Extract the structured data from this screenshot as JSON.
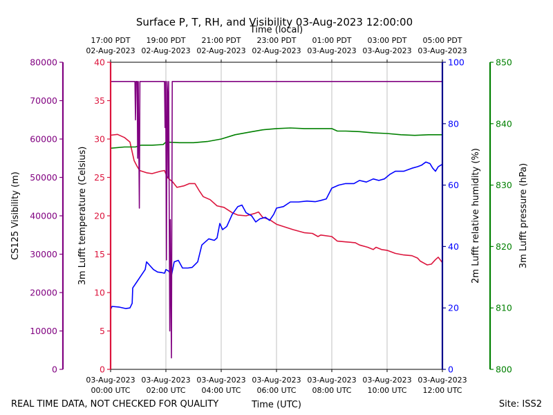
{
  "chart_data": {
    "type": "line",
    "title": "Surface P, T, RH, and Visibility 03-Aug-2023 12:00:00",
    "top_axis_title": "Time (local)",
    "xlabel": "Time (UTC)",
    "footer_left": "REAL TIME DATA, NOT CHECKED FOR QUALITY",
    "footer_right": "Site: ISS2",
    "x_range_hours": [
      0,
      12
    ],
    "x_ticks": [
      {
        "h": 0,
        "utc": [
          "03-Aug-2023",
          "00:00 UTC"
        ],
        "local": [
          "17:00 PDT",
          "02-Aug-2023"
        ]
      },
      {
        "h": 2,
        "utc": [
          "03-Aug-2023",
          "02:00 UTC"
        ],
        "local": [
          "19:00 PDT",
          "02-Aug-2023"
        ]
      },
      {
        "h": 4,
        "utc": [
          "03-Aug-2023",
          "04:00 UTC"
        ],
        "local": [
          "21:00 PDT",
          "02-Aug-2023"
        ]
      },
      {
        "h": 6,
        "utc": [
          "03-Aug-2023",
          "06:00 UTC"
        ],
        "local": [
          "23:00 PDT",
          "02-Aug-2023"
        ]
      },
      {
        "h": 8,
        "utc": [
          "03-Aug-2023",
          "08:00 UTC"
        ],
        "local": [
          "01:00 PDT",
          "03-Aug-2023"
        ]
      },
      {
        "h": 10,
        "utc": [
          "03-Aug-2023",
          "10:00 UTC"
        ],
        "local": [
          "03:00 PDT",
          "03-Aug-2023"
        ]
      },
      {
        "h": 12,
        "utc": [
          "03-Aug-2023",
          "12:00 UTC"
        ],
        "local": [
          "05:00 PDT",
          "03-Aug-2023"
        ]
      }
    ],
    "axes": {
      "visibility": {
        "label": "CS125 Visibility (m)",
        "color": "#800080",
        "range": [
          0,
          80000
        ],
        "ticks": [
          "0",
          "10000",
          "20000",
          "30000",
          "40000",
          "50000",
          "60000",
          "70000",
          "80000"
        ]
      },
      "temperature": {
        "label": "3m Lufft temperature (Celsius)",
        "color": "#dc143c",
        "range": [
          0,
          40
        ],
        "ticks": [
          "0",
          "5",
          "10",
          "15",
          "20",
          "25",
          "30",
          "35",
          "40"
        ]
      },
      "humidity": {
        "label": "2m Lufft relative humidity (%)",
        "color": "#0000ff",
        "axis_color": "#00008b",
        "range": [
          0,
          100
        ],
        "ticks": [
          "0",
          "20",
          "40",
          "60",
          "80",
          "100"
        ]
      },
      "pressure": {
        "label": "3m Lufft pressure (hPa)",
        "color": "#008000",
        "range": [
          800,
          850
        ],
        "ticks": [
          "800",
          "810",
          "820",
          "830",
          "840",
          "850"
        ]
      }
    },
    "series": [
      {
        "name": "3m Lufft temperature",
        "axis": "temperature",
        "color": "#dc143c",
        "points": [
          [
            0,
            30.5
          ],
          [
            0.25,
            30.6
          ],
          [
            0.5,
            30.2
          ],
          [
            0.7,
            29.6
          ],
          [
            0.8,
            28.0
          ],
          [
            0.85,
            27.2
          ],
          [
            0.95,
            26.5
          ],
          [
            1.05,
            25.9
          ],
          [
            1.3,
            25.6
          ],
          [
            1.5,
            25.5
          ],
          [
            1.8,
            25.8
          ],
          [
            1.95,
            25.9
          ],
          [
            2.05,
            25.0
          ],
          [
            2.25,
            24.4
          ],
          [
            2.4,
            23.7
          ],
          [
            2.65,
            23.9
          ],
          [
            2.85,
            24.2
          ],
          [
            3.05,
            24.2
          ],
          [
            3.2,
            23.3
          ],
          [
            3.35,
            22.5
          ],
          [
            3.6,
            22.1
          ],
          [
            3.85,
            21.3
          ],
          [
            4.1,
            21.1
          ],
          [
            4.4,
            20.4
          ],
          [
            4.6,
            20.1
          ],
          [
            4.9,
            20.0
          ],
          [
            5.2,
            20.3
          ],
          [
            5.35,
            20.5
          ],
          [
            5.5,
            19.8
          ],
          [
            5.75,
            19.5
          ],
          [
            6.0,
            18.9
          ],
          [
            6.25,
            18.6
          ],
          [
            6.6,
            18.2
          ],
          [
            7.0,
            17.8
          ],
          [
            7.3,
            17.7
          ],
          [
            7.5,
            17.3
          ],
          [
            7.6,
            17.5
          ],
          [
            8.0,
            17.3
          ],
          [
            8.2,
            16.7
          ],
          [
            8.5,
            16.6
          ],
          [
            8.85,
            16.5
          ],
          [
            9.0,
            16.2
          ],
          [
            9.3,
            15.9
          ],
          [
            9.5,
            15.6
          ],
          [
            9.6,
            15.9
          ],
          [
            9.8,
            15.6
          ],
          [
            10.0,
            15.5
          ],
          [
            10.3,
            15.1
          ],
          [
            10.6,
            14.9
          ],
          [
            10.9,
            14.8
          ],
          [
            11.1,
            14.5
          ],
          [
            11.2,
            14.1
          ],
          [
            11.45,
            13.6
          ],
          [
            11.6,
            13.7
          ],
          [
            11.75,
            14.3
          ],
          [
            11.85,
            14.6
          ],
          [
            12.0,
            13.9
          ]
        ]
      },
      {
        "name": "2m Lufft relative humidity",
        "axis": "humidity",
        "color": "#0000ff",
        "points": [
          [
            0,
            19.5
          ],
          [
            0.05,
            20.5
          ],
          [
            0.3,
            20.3
          ],
          [
            0.55,
            19.8
          ],
          [
            0.7,
            20.0
          ],
          [
            0.78,
            21.5
          ],
          [
            0.8,
            26.5
          ],
          [
            0.95,
            28.5
          ],
          [
            1.1,
            30.5
          ],
          [
            1.25,
            32.5
          ],
          [
            1.3,
            35.0
          ],
          [
            1.4,
            34.0
          ],
          [
            1.55,
            32.5
          ],
          [
            1.7,
            31.7
          ],
          [
            1.85,
            31.5
          ],
          [
            1.95,
            31.3
          ],
          [
            2.0,
            32.5
          ],
          [
            2.1,
            32.0
          ],
          [
            2.2,
            30.5
          ],
          [
            2.3,
            35.0
          ],
          [
            2.45,
            35.5
          ],
          [
            2.6,
            33.0
          ],
          [
            2.8,
            33.0
          ],
          [
            2.95,
            33.2
          ],
          [
            3.15,
            35.0
          ],
          [
            3.3,
            40.5
          ],
          [
            3.55,
            42.5
          ],
          [
            3.75,
            42.0
          ],
          [
            3.85,
            42.8
          ],
          [
            3.95,
            47.5
          ],
          [
            4.05,
            45.5
          ],
          [
            4.2,
            46.5
          ],
          [
            4.4,
            50.5
          ],
          [
            4.6,
            53.0
          ],
          [
            4.75,
            53.5
          ],
          [
            4.9,
            51.0
          ],
          [
            5.1,
            50.0
          ],
          [
            5.25,
            48.0
          ],
          [
            5.4,
            49.0
          ],
          [
            5.6,
            49.5
          ],
          [
            5.75,
            48.5
          ],
          [
            5.9,
            50.5
          ],
          [
            6.0,
            52.5
          ],
          [
            6.25,
            53.0
          ],
          [
            6.5,
            54.5
          ],
          [
            6.8,
            54.5
          ],
          [
            7.1,
            54.8
          ],
          [
            7.4,
            54.6
          ],
          [
            7.6,
            55.0
          ],
          [
            7.8,
            55.5
          ],
          [
            8.0,
            59.0
          ],
          [
            8.25,
            60.0
          ],
          [
            8.5,
            60.5
          ],
          [
            8.8,
            60.5
          ],
          [
            9.0,
            61.5
          ],
          [
            9.25,
            61.0
          ],
          [
            9.5,
            62.0
          ],
          [
            9.7,
            61.5
          ],
          [
            9.9,
            62.0
          ],
          [
            10.1,
            63.5
          ],
          [
            10.3,
            64.5
          ],
          [
            10.6,
            64.5
          ],
          [
            10.9,
            65.5
          ],
          [
            11.1,
            66.0
          ],
          [
            11.25,
            66.5
          ],
          [
            11.4,
            67.5
          ],
          [
            11.55,
            67.0
          ],
          [
            11.65,
            65.5
          ],
          [
            11.75,
            64.5
          ],
          [
            11.85,
            66.0
          ],
          [
            12.0,
            66.8
          ]
        ]
      },
      {
        "name": "3m Lufft pressure",
        "axis": "pressure",
        "color": "#008000",
        "points": [
          [
            0,
            836.0
          ],
          [
            0.5,
            836.2
          ],
          [
            0.9,
            836.2
          ],
          [
            1.1,
            836.5
          ],
          [
            1.5,
            836.5
          ],
          [
            1.9,
            836.6
          ],
          [
            2.0,
            837.0
          ],
          [
            2.5,
            836.9
          ],
          [
            3.0,
            836.9
          ],
          [
            3.5,
            837.1
          ],
          [
            4.0,
            837.5
          ],
          [
            4.5,
            838.2
          ],
          [
            5.0,
            838.6
          ],
          [
            5.5,
            839.0
          ],
          [
            6.0,
            839.2
          ],
          [
            6.5,
            839.3
          ],
          [
            7.0,
            839.2
          ],
          [
            7.5,
            839.2
          ],
          [
            8.0,
            839.2
          ],
          [
            8.2,
            838.8
          ],
          [
            8.5,
            838.8
          ],
          [
            9.0,
            838.7
          ],
          [
            9.5,
            838.5
          ],
          [
            10.0,
            838.4
          ],
          [
            10.5,
            838.2
          ],
          [
            11.0,
            838.1
          ],
          [
            11.5,
            838.2
          ],
          [
            12.0,
            838.2
          ]
        ]
      },
      {
        "name": "CS125 Visibility",
        "axis": "visibility",
        "color": "#800080",
        "points": [
          [
            0,
            75000
          ],
          [
            0.88,
            75000
          ],
          [
            0.9,
            65000
          ],
          [
            0.92,
            75000
          ],
          [
            0.96,
            75000
          ],
          [
            0.98,
            55000
          ],
          [
            1.0,
            75000
          ],
          [
            1.04,
            42000
          ],
          [
            1.06,
            75000
          ],
          [
            1.95,
            75000
          ],
          [
            1.97,
            63000
          ],
          [
            1.99,
            75000
          ],
          [
            2.02,
            28500
          ],
          [
            2.04,
            75000
          ],
          [
            2.06,
            72000
          ],
          [
            2.08,
            50000
          ],
          [
            2.1,
            75000
          ],
          [
            2.14,
            10000
          ],
          [
            2.16,
            39000
          ],
          [
            2.2,
            3000
          ],
          [
            2.23,
            75000
          ],
          [
            12,
            75000
          ]
        ]
      }
    ]
  }
}
